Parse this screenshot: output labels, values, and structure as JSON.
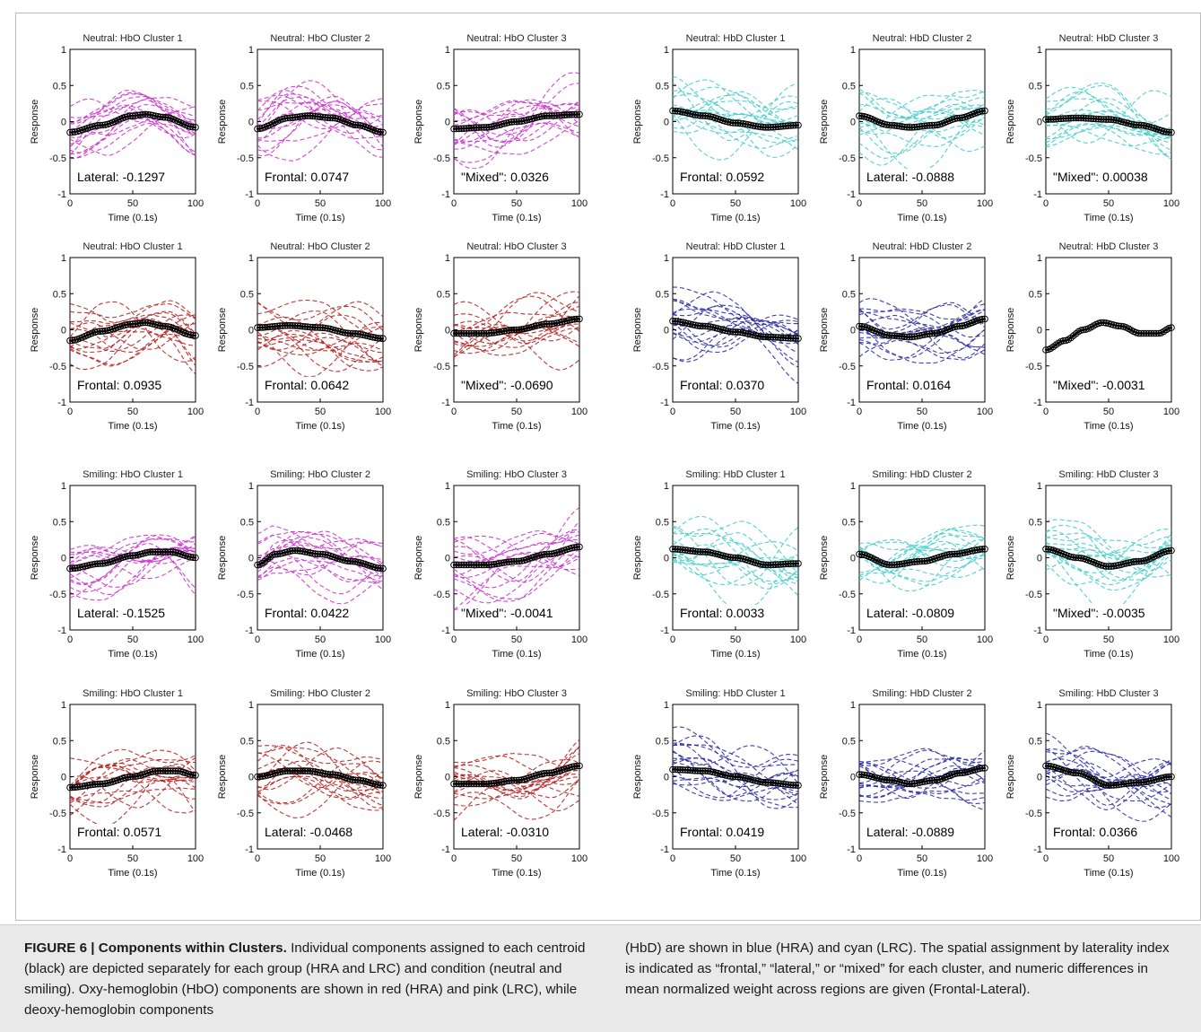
{
  "caption": {
    "label": "FIGURE 6 | Components within Clusters.",
    "left_text": "Individual components assigned to each centroid (black) are depicted separately for each group (HRA and LRC) and condition (neutral and smiling). Oxy-hemoglobin (HbO) components are shown in red (HRA) and pink (LRC), while deoxy-hemoglobin components",
    "right_text": "(HbD) are shown in blue (HRA) and cyan (LRC). The spatial assignment by laterality index is indicated as “frontal,” “lateral,” or “mixed” for each cluster, and numeric differences in mean normalized weight across regions are given (Frontal-Lateral)."
  },
  "colors": {
    "pink": "#cc33cc",
    "red": "#b52222",
    "blue": "#2a2aa8",
    "cyan": "#44cccc",
    "centroid": "#000000"
  },
  "chart_data": [
    {
      "type": "line",
      "title": "Neutral: HbO Cluster 1",
      "xlabel": "Time (0.1s)",
      "ylabel": "Response",
      "xlim": [
        0,
        100
      ],
      "ylim": [
        -1,
        1
      ],
      "xticks": [
        "0",
        "50",
        "100"
      ],
      "yticks": [
        "-1",
        "-0.5",
        "0",
        "0.5",
        "1"
      ],
      "annotation": "Lateral: -0.1297",
      "component_color": "pink",
      "centroid": {
        "x": [
          0,
          25,
          50,
          60,
          75,
          100
        ],
        "y": [
          -0.15,
          -0.05,
          0.08,
          0.1,
          0.06,
          -0.08
        ]
      }
    },
    {
      "type": "line",
      "title": "Neutral: HbO Cluster 2",
      "xlabel": "Time (0.1s)",
      "ylabel": "Response",
      "xlim": [
        0,
        100
      ],
      "ylim": [
        -1,
        1
      ],
      "xticks": [
        "0",
        "50",
        "100"
      ],
      "yticks": [
        "-1",
        "-0.5",
        "0",
        "0.5",
        "1"
      ],
      "annotation": "Frontal: 0.0747",
      "component_color": "pink",
      "centroid": {
        "x": [
          0,
          25,
          40,
          60,
          80,
          100
        ],
        "y": [
          -0.1,
          0.05,
          0.08,
          0.05,
          -0.05,
          -0.15
        ]
      }
    },
    {
      "type": "line",
      "title": "Neutral: HbO Cluster 3",
      "xlabel": "Time (0.1s)",
      "ylabel": "Response",
      "xlim": [
        0,
        100
      ],
      "ylim": [
        -1,
        1
      ],
      "xticks": [
        "0",
        "50",
        "100"
      ],
      "yticks": [
        "-1",
        "-0.5",
        "0",
        "0.5",
        "1"
      ],
      "annotation": "\"Mixed\": 0.0326",
      "component_color": "pink",
      "centroid": {
        "x": [
          0,
          25,
          50,
          75,
          100
        ],
        "y": [
          -0.1,
          -0.08,
          0.0,
          0.08,
          0.1
        ]
      }
    },
    {
      "type": "line",
      "title": "Neutral: HbD Cluster 1",
      "xlabel": "Time (0.1s)",
      "ylabel": "Response",
      "xlim": [
        0,
        100
      ],
      "ylim": [
        -1,
        1
      ],
      "xticks": [
        "0",
        "50",
        "100"
      ],
      "yticks": [
        "-1",
        "-0.5",
        "0",
        "0.5",
        "1"
      ],
      "annotation": "Frontal: 0.0592",
      "component_color": "cyan",
      "centroid": {
        "x": [
          0,
          25,
          50,
          75,
          100
        ],
        "y": [
          0.15,
          0.08,
          -0.02,
          -0.08,
          -0.05
        ]
      }
    },
    {
      "type": "line",
      "title": "Neutral: HbD Cluster 2",
      "xlabel": "Time (0.1s)",
      "ylabel": "Response",
      "xlim": [
        0,
        100
      ],
      "ylim": [
        -1,
        1
      ],
      "xticks": [
        "0",
        "50",
        "100"
      ],
      "yticks": [
        "-1",
        "-0.5",
        "0",
        "0.5",
        "1"
      ],
      "annotation": "Lateral: -0.0888",
      "component_color": "cyan",
      "centroid": {
        "x": [
          0,
          25,
          40,
          60,
          80,
          100
        ],
        "y": [
          0.08,
          -0.05,
          -0.08,
          -0.05,
          0.05,
          0.15
        ]
      }
    },
    {
      "type": "line",
      "title": "Neutral: HbD Cluster 3",
      "xlabel": "Time (0.1s)",
      "ylabel": "Response",
      "xlim": [
        0,
        100
      ],
      "ylim": [
        -1,
        1
      ],
      "xticks": [
        "0",
        "50",
        "100"
      ],
      "yticks": [
        "-1",
        "-0.5",
        "0",
        "0.5",
        "1"
      ],
      "annotation": "\"Mixed\": 0.00038",
      "component_color": "cyan",
      "centroid": {
        "x": [
          0,
          25,
          50,
          75,
          100
        ],
        "y": [
          0.03,
          0.05,
          0.03,
          -0.05,
          -0.15
        ]
      }
    },
    {
      "type": "line",
      "title": "Neutral: HbO Cluster 1",
      "xlabel": "Time (0.1s)",
      "ylabel": "Response",
      "xlim": [
        0,
        100
      ],
      "ylim": [
        -1,
        1
      ],
      "xticks": [
        "0",
        "50",
        "100"
      ],
      "yticks": [
        "-1",
        "-0.5",
        "0",
        "0.5",
        "1"
      ],
      "annotation": "Frontal: 0.0935",
      "component_color": "red",
      "centroid": {
        "x": [
          0,
          25,
          50,
          60,
          75,
          100
        ],
        "y": [
          -0.15,
          -0.02,
          0.08,
          0.1,
          0.05,
          -0.08
        ]
      }
    },
    {
      "type": "line",
      "title": "Neutral: HbO Cluster 2",
      "xlabel": "Time (0.1s)",
      "ylabel": "Response",
      "xlim": [
        0,
        100
      ],
      "ylim": [
        -1,
        1
      ],
      "xticks": [
        "0",
        "50",
        "100"
      ],
      "yticks": [
        "-1",
        "-0.5",
        "0",
        "0.5",
        "1"
      ],
      "annotation": "Frontal: 0.0642",
      "component_color": "red",
      "centroid": {
        "x": [
          0,
          25,
          50,
          75,
          100
        ],
        "y": [
          0.03,
          0.06,
          0.03,
          -0.05,
          -0.12
        ]
      }
    },
    {
      "type": "line",
      "title": "Neutral: HbO Cluster 3",
      "xlabel": "Time (0.1s)",
      "ylabel": "Response",
      "xlim": [
        0,
        100
      ],
      "ylim": [
        -1,
        1
      ],
      "xticks": [
        "0",
        "50",
        "100"
      ],
      "yticks": [
        "-1",
        "-0.5",
        "0",
        "0.5",
        "1"
      ],
      "annotation": "\"Mixed\": -0.0690",
      "component_color": "red",
      "centroid": {
        "x": [
          0,
          25,
          50,
          75,
          100
        ],
        "y": [
          -0.05,
          -0.05,
          0.0,
          0.08,
          0.15
        ]
      }
    },
    {
      "type": "line",
      "title": "Neutral: HbD Cluster 1",
      "xlabel": "Time (0.1s)",
      "ylabel": "Response",
      "xlim": [
        0,
        100
      ],
      "ylim": [
        -1,
        1
      ],
      "xticks": [
        "0",
        "50",
        "100"
      ],
      "yticks": [
        "-1",
        "-0.5",
        "0",
        "0.5",
        "1"
      ],
      "annotation": "Frontal: 0.0370",
      "component_color": "blue",
      "centroid": {
        "x": [
          0,
          25,
          50,
          75,
          100
        ],
        "y": [
          0.12,
          0.05,
          -0.03,
          -0.1,
          -0.12
        ]
      }
    },
    {
      "type": "line",
      "title": "Neutral: HbD Cluster 2",
      "xlabel": "Time (0.1s)",
      "ylabel": "Response",
      "xlim": [
        0,
        100
      ],
      "ylim": [
        -1,
        1
      ],
      "xticks": [
        "0",
        "50",
        "100"
      ],
      "yticks": [
        "-1",
        "-0.5",
        "0",
        "0.5",
        "1"
      ],
      "annotation": "Frontal: 0.0164",
      "component_color": "blue",
      "centroid": {
        "x": [
          0,
          25,
          40,
          60,
          80,
          100
        ],
        "y": [
          0.05,
          -0.08,
          -0.1,
          -0.05,
          0.05,
          0.15
        ]
      }
    },
    {
      "type": "line",
      "title": "Neutral: HbD Cluster 3",
      "xlabel": "Time (0.1s)",
      "ylabel": "Response",
      "xlim": [
        0,
        100
      ],
      "ylim": [
        -1,
        1
      ],
      "xticks": [
        "0",
        "50",
        "100"
      ],
      "yticks": [
        "-1",
        "-0.5",
        "0",
        "0.5",
        "1"
      ],
      "annotation": "\"Mixed\": -0.0031",
      "component_color": "none",
      "centroid": {
        "x": [
          0,
          15,
          30,
          45,
          60,
          75,
          90,
          100
        ],
        "y": [
          -0.28,
          -0.15,
          0.0,
          0.1,
          0.05,
          -0.05,
          -0.05,
          0.03
        ]
      }
    },
    {
      "type": "line",
      "title": "Smiling: HbO Cluster 1",
      "xlabel": "Time (0.1s)",
      "ylabel": "Response",
      "xlim": [
        0,
        100
      ],
      "ylim": [
        -1,
        1
      ],
      "xticks": [
        "0",
        "50",
        "100"
      ],
      "yticks": [
        "-1",
        "-0.5",
        "0",
        "0.5",
        "1"
      ],
      "annotation": "Lateral: -0.1525",
      "component_color": "pink",
      "centroid": {
        "x": [
          0,
          25,
          50,
          65,
          80,
          100
        ],
        "y": [
          -0.15,
          -0.08,
          0.03,
          0.08,
          0.08,
          0.0
        ]
      }
    },
    {
      "type": "line",
      "title": "Smiling: HbO Cluster 2",
      "xlabel": "Time (0.1s)",
      "ylabel": "Response",
      "xlim": [
        0,
        100
      ],
      "ylim": [
        -1,
        1
      ],
      "xticks": [
        "0",
        "50",
        "100"
      ],
      "yticks": [
        "-1",
        "-0.5",
        "0",
        "0.5",
        "1"
      ],
      "annotation": "Frontal: 0.0422",
      "component_color": "pink",
      "centroid": {
        "x": [
          0,
          15,
          30,
          50,
          75,
          100
        ],
        "y": [
          -0.1,
          0.05,
          0.1,
          0.05,
          -0.05,
          -0.15
        ]
      }
    },
    {
      "type": "line",
      "title": "Smiling: HbO Cluster 3",
      "xlabel": "Time (0.1s)",
      "ylabel": "Response",
      "xlim": [
        0,
        100
      ],
      "ylim": [
        -1,
        1
      ],
      "xticks": [
        "0",
        "50",
        "100"
      ],
      "yticks": [
        "-1",
        "-0.5",
        "0",
        "0.5",
        "1"
      ],
      "annotation": "\"Mixed\": -0.0041",
      "component_color": "pink",
      "centroid": {
        "x": [
          0,
          25,
          50,
          75,
          100
        ],
        "y": [
          -0.1,
          -0.1,
          -0.05,
          0.05,
          0.15
        ]
      }
    },
    {
      "type": "line",
      "title": "Smiling: HbD Cluster 1",
      "xlabel": "Time (0.1s)",
      "ylabel": "Response",
      "xlim": [
        0,
        100
      ],
      "ylim": [
        -1,
        1
      ],
      "xticks": [
        "0",
        "50",
        "100"
      ],
      "yticks": [
        "-1",
        "-0.5",
        "0",
        "0.5",
        "1"
      ],
      "annotation": "Frontal: 0.0033",
      "component_color": "cyan",
      "centroid": {
        "x": [
          0,
          25,
          50,
          75,
          100
        ],
        "y": [
          0.12,
          0.08,
          0.0,
          -0.1,
          -0.08
        ]
      }
    },
    {
      "type": "line",
      "title": "Smiling: HbD Cluster 2",
      "xlabel": "Time (0.1s)",
      "ylabel": "Response",
      "xlim": [
        0,
        100
      ],
      "ylim": [
        -1,
        1
      ],
      "xticks": [
        "0",
        "50",
        "100"
      ],
      "yticks": [
        "-1",
        "-0.5",
        "0",
        "0.5",
        "1"
      ],
      "annotation": "Lateral: -0.0809",
      "component_color": "cyan",
      "centroid": {
        "x": [
          0,
          25,
          50,
          75,
          100
        ],
        "y": [
          0.05,
          -0.1,
          -0.05,
          0.05,
          0.12
        ]
      }
    },
    {
      "type": "line",
      "title": "Smiling: HbD Cluster 3",
      "xlabel": "Time (0.1s)",
      "ylabel": "Response",
      "xlim": [
        0,
        100
      ],
      "ylim": [
        -1,
        1
      ],
      "xticks": [
        "0",
        "50",
        "100"
      ],
      "yticks": [
        "-1",
        "-0.5",
        "0",
        "0.5",
        "1"
      ],
      "annotation": "\"Mixed\": -0.0035",
      "component_color": "cyan",
      "centroid": {
        "x": [
          0,
          25,
          50,
          75,
          100
        ],
        "y": [
          0.12,
          0.0,
          -0.12,
          -0.05,
          0.1
        ]
      }
    },
    {
      "type": "line",
      "title": "Smiling: HbO Cluster 1",
      "xlabel": "Time (0.1s)",
      "ylabel": "Response",
      "xlim": [
        0,
        100
      ],
      "ylim": [
        -1,
        1
      ],
      "xticks": [
        "0",
        "50",
        "100"
      ],
      "yticks": [
        "-1",
        "-0.5",
        "0",
        "0.5",
        "1"
      ],
      "annotation": "Frontal: 0.0571",
      "component_color": "red",
      "centroid": {
        "x": [
          0,
          25,
          50,
          70,
          85,
          100
        ],
        "y": [
          -0.15,
          -0.1,
          0.0,
          0.08,
          0.08,
          0.02
        ]
      }
    },
    {
      "type": "line",
      "title": "Smiling: HbO Cluster 2",
      "xlabel": "Time (0.1s)",
      "ylabel": "Response",
      "xlim": [
        0,
        100
      ],
      "ylim": [
        -1,
        1
      ],
      "xticks": [
        "0",
        "50",
        "100"
      ],
      "yticks": [
        "-1",
        "-0.5",
        "0",
        "0.5",
        "1"
      ],
      "annotation": "Lateral: -0.0468",
      "component_color": "red",
      "centroid": {
        "x": [
          0,
          25,
          40,
          60,
          80,
          100
        ],
        "y": [
          0.0,
          0.08,
          0.08,
          0.03,
          -0.05,
          -0.12
        ]
      }
    },
    {
      "type": "line",
      "title": "Smiling: HbO Cluster 3",
      "xlabel": "Time (0.1s)",
      "ylabel": "Response",
      "xlim": [
        0,
        100
      ],
      "ylim": [
        -1,
        1
      ],
      "xticks": [
        "0",
        "50",
        "100"
      ],
      "yticks": [
        "-1",
        "-0.5",
        "0",
        "0.5",
        "1"
      ],
      "annotation": "Lateral: -0.0310",
      "component_color": "red",
      "centroid": {
        "x": [
          0,
          25,
          50,
          75,
          100
        ],
        "y": [
          -0.1,
          -0.1,
          -0.05,
          0.05,
          0.15
        ]
      }
    },
    {
      "type": "line",
      "title": "Smiling: HbD Cluster 1",
      "xlabel": "Time (0.1s)",
      "ylabel": "Response",
      "xlim": [
        0,
        100
      ],
      "ylim": [
        -1,
        1
      ],
      "xticks": [
        "0",
        "50",
        "100"
      ],
      "yticks": [
        "-1",
        "-0.5",
        "0",
        "0.5",
        "1"
      ],
      "annotation": "Frontal: 0.0419",
      "component_color": "blue",
      "centroid": {
        "x": [
          0,
          25,
          50,
          75,
          100
        ],
        "y": [
          0.1,
          0.08,
          0.0,
          -0.08,
          -0.12
        ]
      }
    },
    {
      "type": "line",
      "title": "Smiling: HbD Cluster 2",
      "xlabel": "Time (0.1s)",
      "ylabel": "Response",
      "xlim": [
        0,
        100
      ],
      "ylim": [
        -1,
        1
      ],
      "xticks": [
        "0",
        "50",
        "100"
      ],
      "yticks": [
        "-1",
        "-0.5",
        "0",
        "0.5",
        "1"
      ],
      "annotation": "Lateral: -0.0889",
      "component_color": "blue",
      "centroid": {
        "x": [
          0,
          25,
          40,
          60,
          80,
          100
        ],
        "y": [
          0.03,
          -0.05,
          -0.1,
          -0.05,
          0.05,
          0.12
        ]
      }
    },
    {
      "type": "line",
      "title": "Smiling: HbD Cluster 3",
      "xlabel": "Time (0.1s)",
      "ylabel": "Response",
      "xlim": [
        0,
        100
      ],
      "ylim": [
        -1,
        1
      ],
      "xticks": [
        "0",
        "50",
        "100"
      ],
      "yticks": [
        "-1",
        "-0.5",
        "0",
        "0.5",
        "1"
      ],
      "annotation": "Frontal: 0.0366",
      "component_color": "blue",
      "centroid": {
        "x": [
          0,
          25,
          50,
          75,
          100
        ],
        "y": [
          0.15,
          0.05,
          -0.12,
          -0.08,
          0.0
        ]
      }
    }
  ]
}
